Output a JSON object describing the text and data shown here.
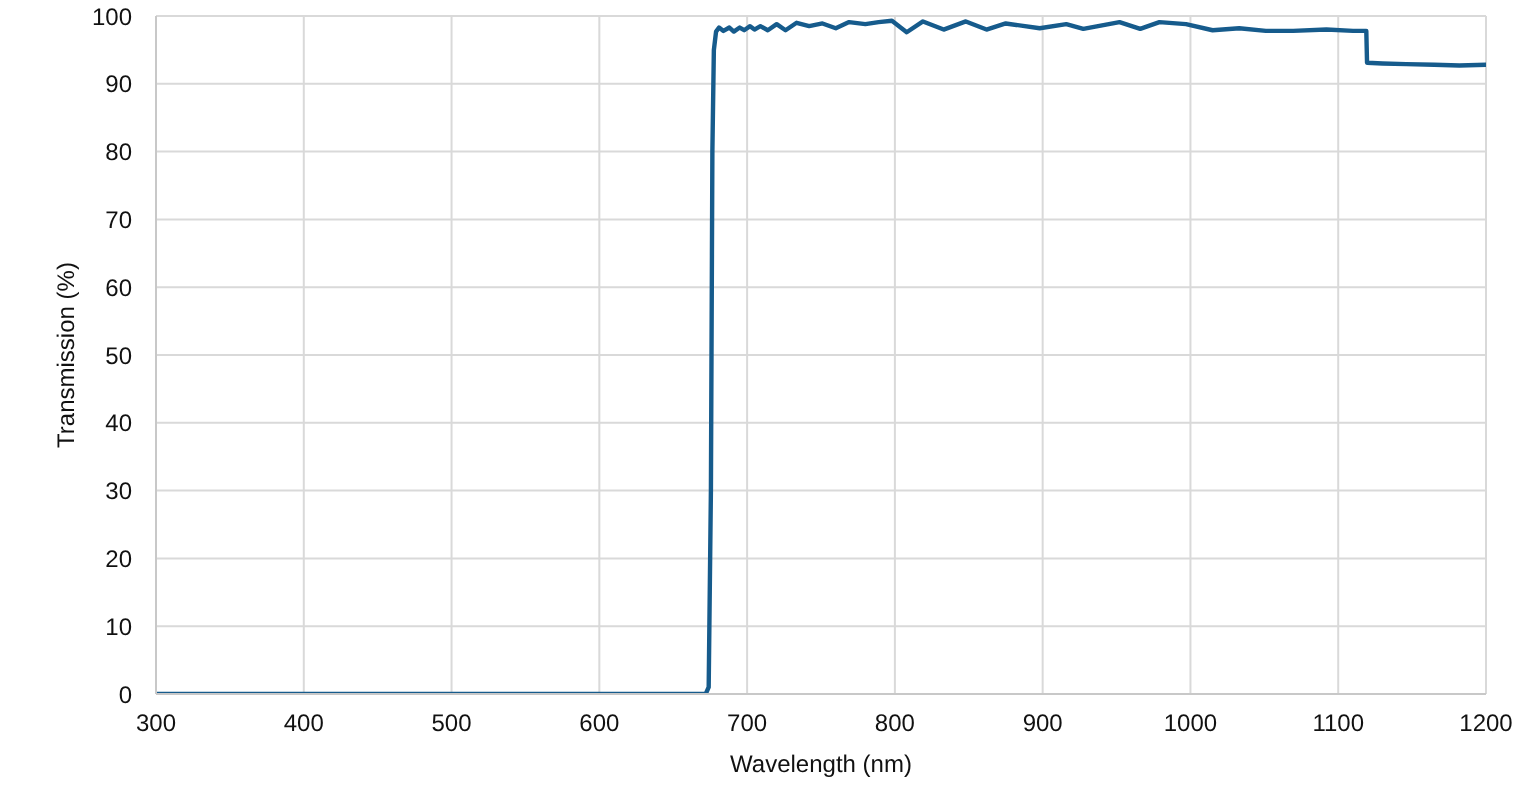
{
  "chart_data": {
    "type": "line",
    "xlabel": "Wavelength (nm)",
    "ylabel": "Transmission (%)",
    "x": [
      300,
      500,
      672,
      674,
      675.5,
      676.5,
      677.5,
      679,
      681,
      684,
      688,
      691,
      695,
      698,
      702,
      705,
      709,
      714,
      720,
      726,
      733.5,
      742,
      751,
      760,
      769,
      780,
      789,
      798,
      808,
      819,
      833,
      848,
      862,
      875,
      898,
      916,
      927.5,
      952,
      966,
      979,
      997,
      1015,
      1033,
      1051,
      1069.5,
      1092,
      1110,
      1119,
      1119.5,
      1130,
      1146,
      1165,
      1182,
      1200
    ],
    "series": [
      {
        "color": "#165b8c",
        "values": [
          0,
          0,
          0,
          1,
          30,
          80,
          95,
          97.7,
          98.3,
          97.8,
          98.3,
          97.7,
          98.3,
          97.9,
          98.5,
          98.0,
          98.5,
          97.9,
          98.8,
          97.9,
          99.0,
          98.5,
          98.9,
          98.2,
          99.1,
          98.8,
          99.1,
          99.3,
          97.6,
          99.2,
          98.0,
          99.2,
          98.0,
          98.9,
          98.2,
          98.8,
          98.1,
          99.1,
          98.1,
          99.1,
          98.8,
          97.9,
          98.2,
          97.8,
          97.8,
          98.0,
          97.8,
          97.8,
          93.1,
          93.0,
          92.9,
          92.8,
          92.7,
          92.8
        ]
      }
    ],
    "xlim": [
      300,
      1200
    ],
    "ylim": [
      0,
      100
    ],
    "xticks": [
      300,
      400,
      500,
      600,
      700,
      800,
      900,
      1000,
      1100,
      1200
    ],
    "yticks": [
      0,
      10,
      20,
      30,
      40,
      50,
      60,
      70,
      80,
      90,
      100
    ],
    "grid": true
  }
}
